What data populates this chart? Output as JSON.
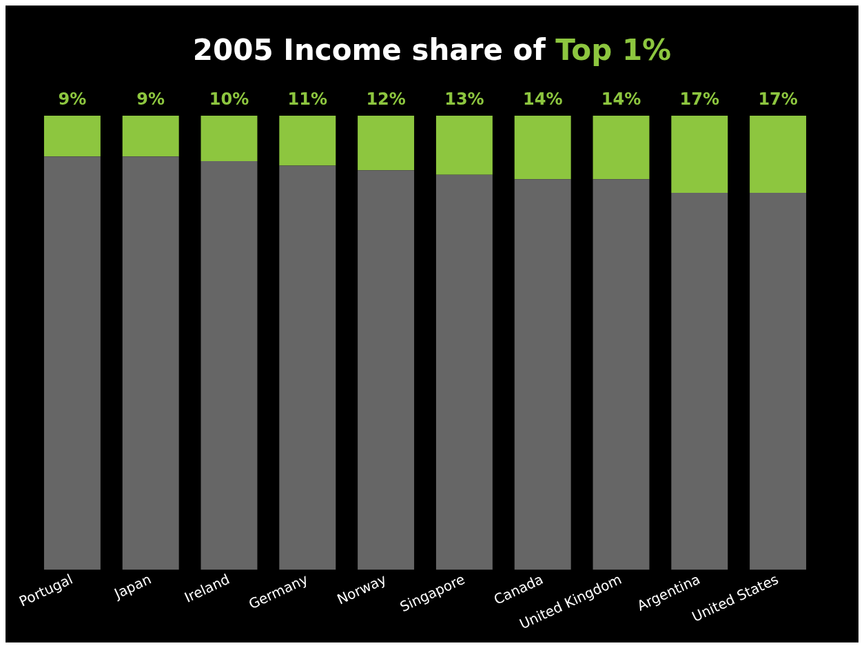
{
  "chart_data": {
    "type": "bar",
    "title": "2005 Income share of Top 1%",
    "categories": [
      "Portugal",
      "Japan",
      "Ireland",
      "Germany",
      "Norway",
      "Singapore",
      "Canada",
      "United Kingdom",
      "Argentina",
      "United States"
    ],
    "stacked": true,
    "ylim": [
      0,
      100
    ],
    "tick_labels": "x",
    "series": [
      {
        "color": "#666666",
        "values": [
          91,
          91,
          90,
          89,
          88,
          87,
          86,
          86,
          83,
          83
        ]
      },
      {
        "color": "#8dc63f",
        "values": [
          9,
          9,
          10,
          11,
          12,
          13,
          14,
          14,
          17,
          17
        ],
        "value_labels": [
          "9%",
          "9%",
          "10%",
          "11%",
          "12%",
          "13%",
          "14%",
          "14%",
          "17%",
          "17%"
        ]
      }
    ]
  }
}
